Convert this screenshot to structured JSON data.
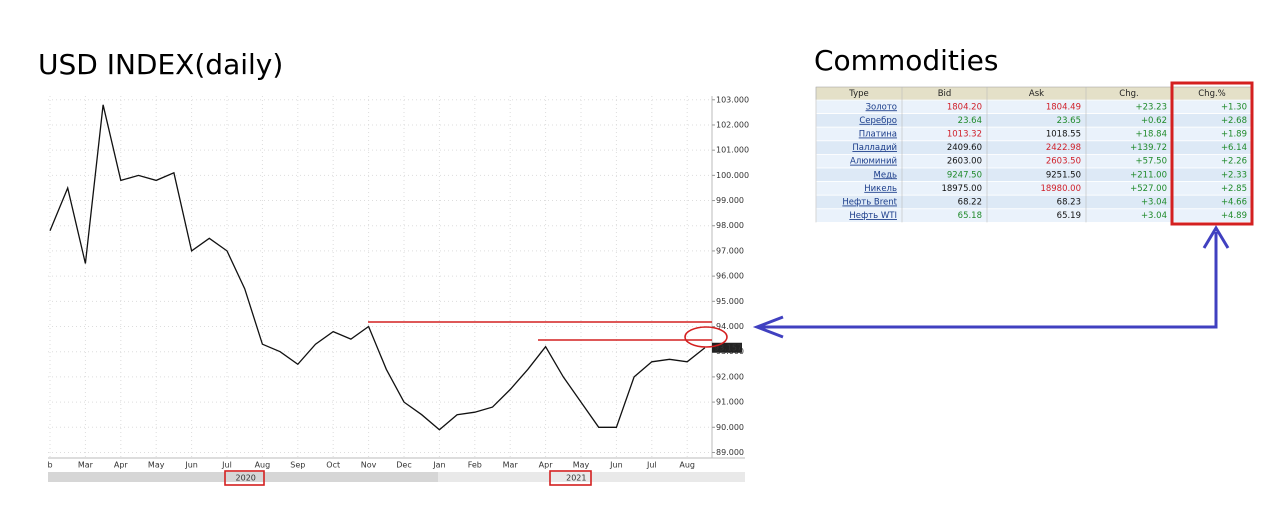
{
  "chart_data": {
    "type": "line",
    "title": "USD INDEX(daily)",
    "categories": [
      "b",
      null,
      "Mar",
      null,
      "Apr",
      null,
      "May",
      null,
      "Jun",
      null,
      "Jul",
      null,
      "Aug",
      null,
      "Sep",
      null,
      "Oct",
      null,
      "Nov",
      null,
      "Dec",
      null,
      "Jan",
      null,
      "Feb",
      null,
      "Mar",
      null,
      "Apr",
      null,
      "May",
      null,
      "Jun",
      null,
      "Jul",
      null,
      "Aug",
      null
    ],
    "year_labels": [
      {
        "index": 11,
        "label": "2020"
      },
      {
        "index": 29,
        "label": "2021"
      }
    ],
    "series": [
      {
        "name": "USD Index",
        "color": "#111111",
        "values": [
          97.8,
          99.5,
          96.5,
          102.8,
          99.8,
          100.0,
          99.8,
          100.1,
          97.0,
          97.5,
          97.0,
          95.5,
          93.3,
          93.0,
          92.5,
          93.3,
          93.8,
          93.5,
          94.0,
          92.3,
          91.0,
          90.5,
          89.9,
          90.5,
          90.6,
          90.8,
          91.5,
          92.3,
          93.2,
          92.0,
          91.0,
          90.0,
          90.0,
          92.0,
          92.6,
          92.7,
          92.6,
          93.157
        ]
      }
    ],
    "ylim": [
      88.9,
      103.15
    ],
    "yticks": [
      {
        "value": 89,
        "label": "89.000"
      },
      {
        "value": 90,
        "label": "90.000"
      },
      {
        "value": 91,
        "label": "91.000"
      },
      {
        "value": 92,
        "label": "92.000"
      },
      {
        "value": 93,
        "label": "93.000"
      },
      {
        "value": 94,
        "label": "94.000"
      },
      {
        "value": 95,
        "label": "95.000"
      },
      {
        "value": 96,
        "label": "96.000"
      },
      {
        "value": 97,
        "label": "97.000"
      },
      {
        "value": 98,
        "label": "98.000"
      },
      {
        "value": 99,
        "label": "99.000"
      },
      {
        "value": 100,
        "label": "100.000"
      },
      {
        "value": 101,
        "label": "101.000"
      },
      {
        "value": 102,
        "label": "102.000"
      },
      {
        "value": 103,
        "label": "103.000"
      }
    ],
    "grid": true
  },
  "table": {
    "title": "Commodities",
    "header": [
      "Type",
      "Bid",
      "Ask",
      "Chg.",
      "Chg.%"
    ],
    "rows": [
      [
        "Золото",
        "1804.20",
        "1804.49",
        "+23.23",
        "+1.30"
      ],
      [
        "Серебро",
        "23.64",
        "23.65",
        "+0.62",
        "+2.68"
      ],
      [
        "Платина",
        "1013.32",
        "1018.55",
        "+18.84",
        "+1.89"
      ],
      [
        "Палладий",
        "2409.60",
        "2422.98",
        "+139.72",
        "+6.14"
      ],
      [
        "Алюминий",
        "2603.00",
        "2603.50",
        "+57.50",
        "+2.26"
      ],
      [
        "Медь",
        "9247.50",
        "9251.50",
        "+211.00",
        "+2.33"
      ],
      [
        "Никель",
        "18975.00",
        "18980.00",
        "+527.00",
        "+2.85"
      ],
      [
        "Нефть Brent",
        "68.22",
        "68.23",
        "+3.04",
        "+4.66"
      ],
      [
        "Нефть WTI",
        "65.18",
        "65.19",
        "+3.04",
        "+4.89"
      ]
    ],
    "cell_colors": [
      [
        "#1a3c8a",
        "#d0202a",
        "#d0202a",
        "#1f8a2a",
        "#1f8a2a"
      ],
      [
        "#1a3c8a",
        "#1f8a2a",
        "#1f8a2a",
        "#1f8a2a",
        "#1f8a2a"
      ],
      [
        "#1a3c8a",
        "#d0202a",
        "#111111",
        "#1f8a2a",
        "#1f8a2a"
      ],
      [
        "#1a3c8a",
        "#111111",
        "#d0202a",
        "#1f8a2a",
        "#1f8a2a"
      ],
      [
        "#1a3c8a",
        "#111111",
        "#d0202a",
        "#1f8a2a",
        "#1f8a2a"
      ],
      [
        "#1a3c8a",
        "#1f8a2a",
        "#111111",
        "#1f8a2a",
        "#1f8a2a"
      ],
      [
        "#1a3c8a",
        "#111111",
        "#d0202a",
        "#1f8a2a",
        "#1f8a2a"
      ],
      [
        "#1a3c8a",
        "#111111",
        "#111111",
        "#1f8a2a",
        "#1f8a2a"
      ],
      [
        "#1a3c8a",
        "#1f8a2a",
        "#111111",
        "#1f8a2a",
        "#1f8a2a"
      ]
    ]
  }
}
